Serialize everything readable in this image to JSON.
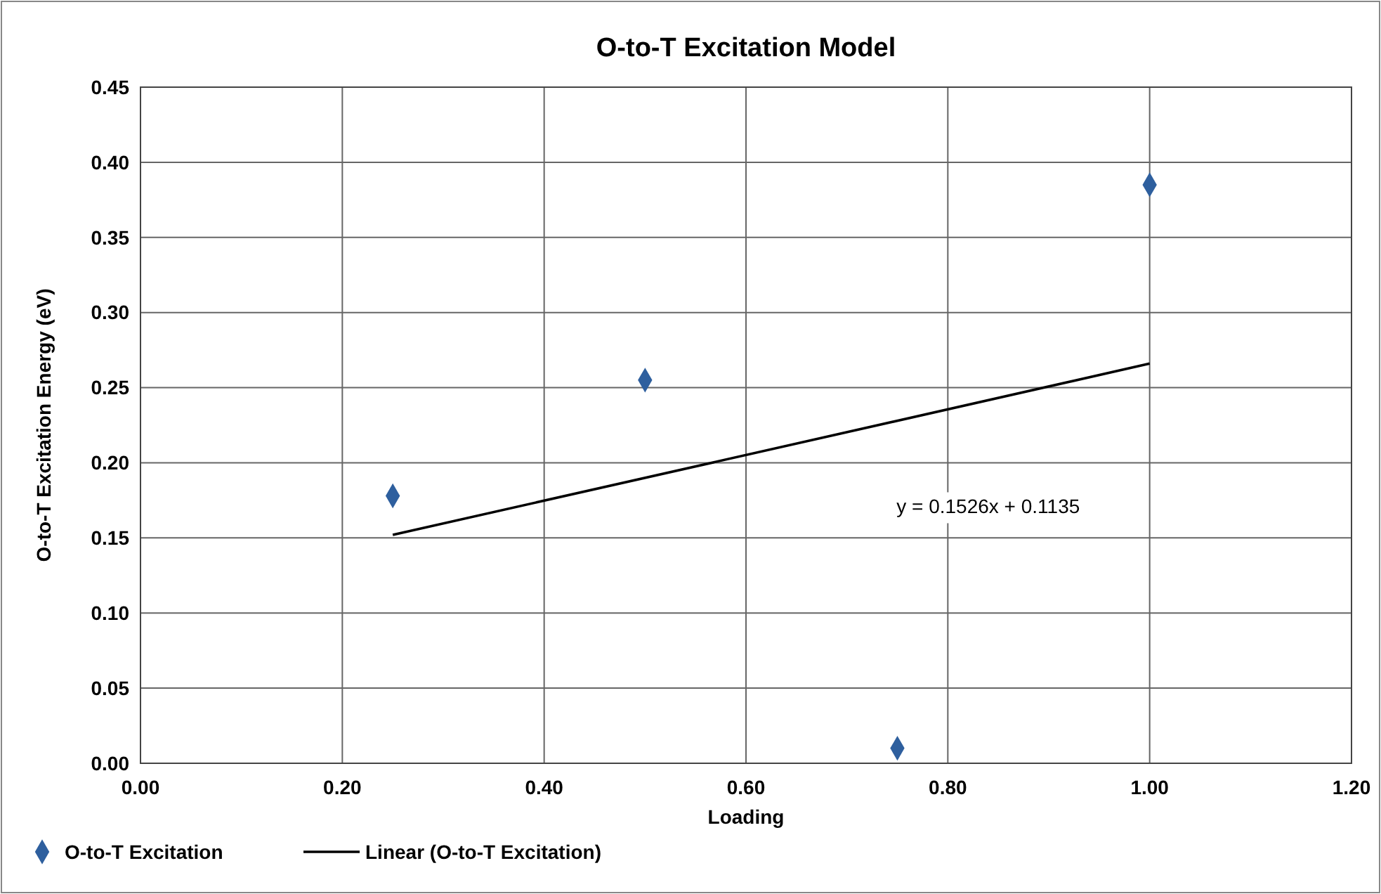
{
  "chart_data": {
    "type": "scatter",
    "title": "O-to-T Excitation Model",
    "xlabel": "Loading",
    "ylabel": "O-to-T Excitation Energy (eV)",
    "xlim": [
      0,
      1.2
    ],
    "ylim": [
      0,
      0.45
    ],
    "xticks": [
      {
        "value": 0,
        "label": "0.00"
      },
      {
        "value": 0.2,
        "label": "0.20"
      },
      {
        "value": 0.4,
        "label": "0.40"
      },
      {
        "value": 0.6,
        "label": "0.60"
      },
      {
        "value": 0.8,
        "label": "0.80"
      },
      {
        "value": 1,
        "label": "1.00"
      },
      {
        "value": 1.2,
        "label": "1.20"
      }
    ],
    "yticks": [
      {
        "value": 0,
        "label": "0.00"
      },
      {
        "value": 0.05,
        "label": "0.05"
      },
      {
        "value": 0.1,
        "label": "0.10"
      },
      {
        "value": 0.15,
        "label": "0.15"
      },
      {
        "value": 0.2,
        "label": "0.20"
      },
      {
        "value": 0.25,
        "label": "0.25"
      },
      {
        "value": 0.3,
        "label": "0.30"
      },
      {
        "value": 0.35,
        "label": "0.35"
      },
      {
        "value": 0.4,
        "label": "0.40"
      },
      {
        "value": 0.45,
        "label": "0.45"
      }
    ],
    "grid": true,
    "legend": "bottom left",
    "series": [
      {
        "name": "O-to-T Excitation",
        "marker": "diamond",
        "color": "#2e5f9e",
        "x": [
          0.25,
          0.5,
          0.75,
          1.0
        ],
        "values": [
          0.178,
          0.255,
          0.01,
          0.385
        ]
      },
      {
        "name": "Linear (O-to-T Excitation)",
        "type": "line",
        "marker": "none",
        "line_style": "solid",
        "color": "#000000",
        "x": [
          0.25,
          1.0
        ],
        "values": [
          0.152,
          0.266
        ]
      }
    ],
    "annotations": [
      "y = 0.1526x + 0.1135"
    ]
  }
}
